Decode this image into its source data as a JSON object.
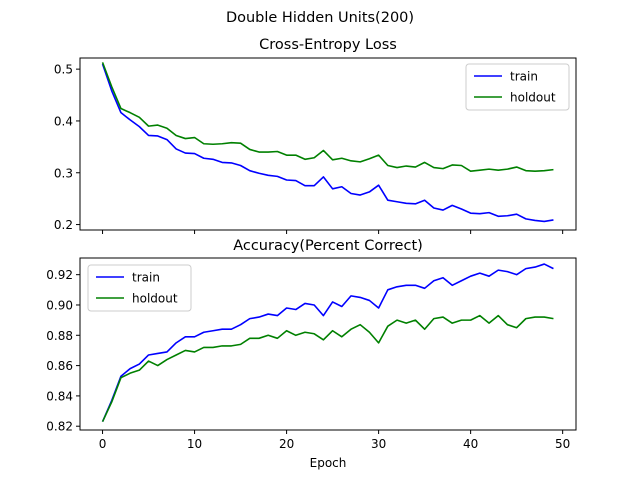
{
  "figure_title": "Double Hidden Units(200)",
  "chart_data": [
    {
      "type": "line",
      "title": "Cross-Entropy Loss",
      "xlabel": "",
      "ylabel": "",
      "xlim": [
        -2.45,
        51.45
      ],
      "ylim": [
        0.1895,
        0.5215
      ],
      "xticks": [
        0,
        10,
        20,
        30,
        40,
        50
      ],
      "xtick_labels": [],
      "yticks": [
        0.2,
        0.3,
        0.4,
        0.5
      ],
      "ytick_labels": [
        "0.2",
        "0.3",
        "0.4",
        "0.5"
      ],
      "legend_position": "top-right",
      "grid": false,
      "x": [
        0,
        1,
        2,
        3,
        4,
        5,
        6,
        7,
        8,
        9,
        10,
        11,
        12,
        13,
        14,
        15,
        16,
        17,
        18,
        19,
        20,
        21,
        22,
        23,
        24,
        25,
        26,
        27,
        28,
        29,
        30,
        31,
        32,
        33,
        34,
        35,
        36,
        37,
        38,
        39,
        40,
        41,
        42,
        43,
        44,
        45,
        46,
        47,
        48,
        49
      ],
      "series": [
        {
          "name": "train",
          "color": "#0000ff",
          "values": [
            0.51,
            0.458,
            0.416,
            0.402,
            0.389,
            0.372,
            0.371,
            0.364,
            0.346,
            0.338,
            0.337,
            0.328,
            0.326,
            0.32,
            0.319,
            0.314,
            0.304,
            0.299,
            0.295,
            0.293,
            0.286,
            0.285,
            0.275,
            0.275,
            0.292,
            0.269,
            0.273,
            0.26,
            0.257,
            0.263,
            0.276,
            0.247,
            0.244,
            0.241,
            0.24,
            0.247,
            0.232,
            0.228,
            0.237,
            0.23,
            0.222,
            0.221,
            0.223,
            0.216,
            0.217,
            0.22,
            0.211,
            0.208,
            0.206,
            0.209
          ]
        },
        {
          "name": "holdout",
          "color": "#008000",
          "values": [
            0.513,
            0.466,
            0.424,
            0.416,
            0.407,
            0.39,
            0.392,
            0.386,
            0.372,
            0.366,
            0.368,
            0.356,
            0.355,
            0.356,
            0.358,
            0.357,
            0.345,
            0.34,
            0.34,
            0.341,
            0.334,
            0.334,
            0.326,
            0.329,
            0.343,
            0.325,
            0.328,
            0.323,
            0.321,
            0.327,
            0.334,
            0.314,
            0.31,
            0.313,
            0.311,
            0.32,
            0.31,
            0.308,
            0.315,
            0.314,
            0.303,
            0.305,
            0.307,
            0.305,
            0.307,
            0.311,
            0.304,
            0.303,
            0.304,
            0.306
          ]
        }
      ]
    },
    {
      "type": "line",
      "title": "Accuracy(Percent Correct)",
      "xlabel": "Epoch",
      "ylabel": "",
      "xlim": [
        -2.45,
        51.45
      ],
      "ylim": [
        0.8175,
        0.931
      ],
      "xticks": [
        0,
        10,
        20,
        30,
        40,
        50
      ],
      "xtick_labels": [
        "0",
        "10",
        "20",
        "30",
        "40",
        "50"
      ],
      "yticks": [
        0.82,
        0.84,
        0.86,
        0.88,
        0.9,
        0.92
      ],
      "ytick_labels": [
        "0.82",
        "0.84",
        "0.86",
        "0.88",
        "0.90",
        "0.92"
      ],
      "legend_position": "top-left",
      "grid": false,
      "x": [
        0,
        1,
        2,
        3,
        4,
        5,
        6,
        7,
        8,
        9,
        10,
        11,
        12,
        13,
        14,
        15,
        16,
        17,
        18,
        19,
        20,
        21,
        22,
        23,
        24,
        25,
        26,
        27,
        28,
        29,
        30,
        31,
        32,
        33,
        34,
        35,
        36,
        37,
        38,
        39,
        40,
        41,
        42,
        43,
        44,
        45,
        46,
        47,
        48,
        49
      ],
      "series": [
        {
          "name": "train",
          "color": "#0000ff",
          "values": [
            0.823,
            0.837,
            0.853,
            0.858,
            0.861,
            0.867,
            0.868,
            0.869,
            0.875,
            0.879,
            0.879,
            0.882,
            0.883,
            0.884,
            0.884,
            0.887,
            0.891,
            0.892,
            0.894,
            0.893,
            0.898,
            0.897,
            0.901,
            0.9,
            0.893,
            0.902,
            0.899,
            0.906,
            0.905,
            0.903,
            0.898,
            0.91,
            0.912,
            0.913,
            0.913,
            0.911,
            0.916,
            0.918,
            0.913,
            0.916,
            0.919,
            0.921,
            0.919,
            0.923,
            0.922,
            0.92,
            0.924,
            0.925,
            0.927,
            0.924
          ]
        },
        {
          "name": "holdout",
          "color": "#008000",
          "values": [
            0.823,
            0.836,
            0.852,
            0.855,
            0.857,
            0.863,
            0.86,
            0.864,
            0.867,
            0.87,
            0.869,
            0.872,
            0.872,
            0.873,
            0.873,
            0.874,
            0.878,
            0.878,
            0.88,
            0.878,
            0.883,
            0.88,
            0.882,
            0.881,
            0.877,
            0.883,
            0.879,
            0.884,
            0.887,
            0.882,
            0.875,
            0.886,
            0.89,
            0.888,
            0.89,
            0.884,
            0.891,
            0.892,
            0.888,
            0.89,
            0.89,
            0.893,
            0.888,
            0.893,
            0.887,
            0.885,
            0.891,
            0.892,
            0.892,
            0.891
          ]
        }
      ]
    }
  ]
}
